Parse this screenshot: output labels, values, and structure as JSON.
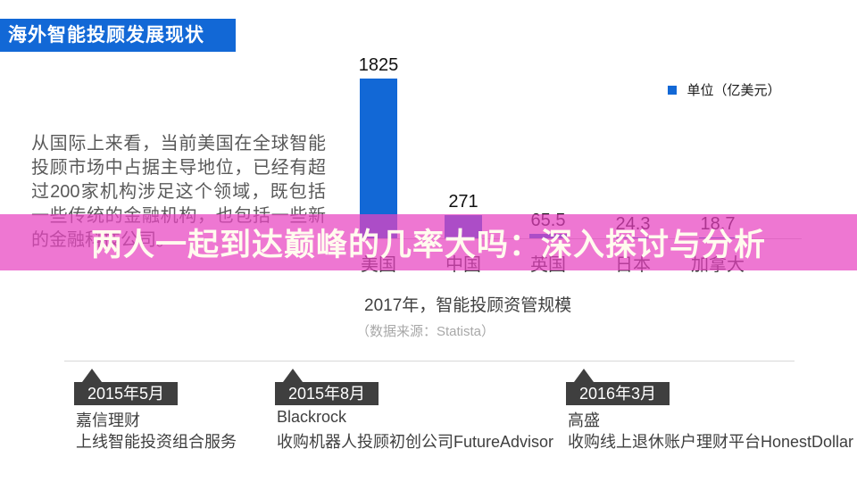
{
  "slide": {
    "title": "海外智能投顾发展现状",
    "paragraph": "从国际上来看，当前美国在全球智能投顾市场中占据主导地位，已经有超过200家机构涉足这个领域，既包括一些传统的金融机构，也包括一些新的金融科技公司。",
    "overlay_banner": "两人一起到达巅峰的几率大吗：深入探讨与分析"
  },
  "chart_data": {
    "type": "bar",
    "categories": [
      "美国",
      "中国",
      "英国",
      "日本",
      "加拿大"
    ],
    "values": [
      1825,
      271,
      65.5,
      24.3,
      18.7
    ],
    "legend": "单位（亿美元）",
    "title": "2017年，智能投顾资管规模",
    "source": "（数据来源：Statista）",
    "ylabel": "",
    "xlabel": "",
    "ylim": [
      0,
      1900
    ],
    "grid": false,
    "legend_position": "top-right",
    "bar_color": "#1268d6"
  },
  "timeline": {
    "events": [
      {
        "date": "2015年5月",
        "company": "嘉信理财",
        "description": "上线智能投资组合服务"
      },
      {
        "date": "2015年8月",
        "company": "Blackrock",
        "description": "收购机器人投顾初创公司FutureAdvisor"
      },
      {
        "date": "2016年3月",
        "company": "高盛",
        "description": "收购线上退休账户理财平台HonestDollar"
      }
    ]
  },
  "colors": {
    "accent_blue": "#1268d6",
    "banner_pink": "rgba(232,66,192,0.72)",
    "banner_text": "#fffbee",
    "tag_gray": "#3f3f3f",
    "paragraph_gray": "#595959",
    "line_gray": "#d9d9d9"
  }
}
